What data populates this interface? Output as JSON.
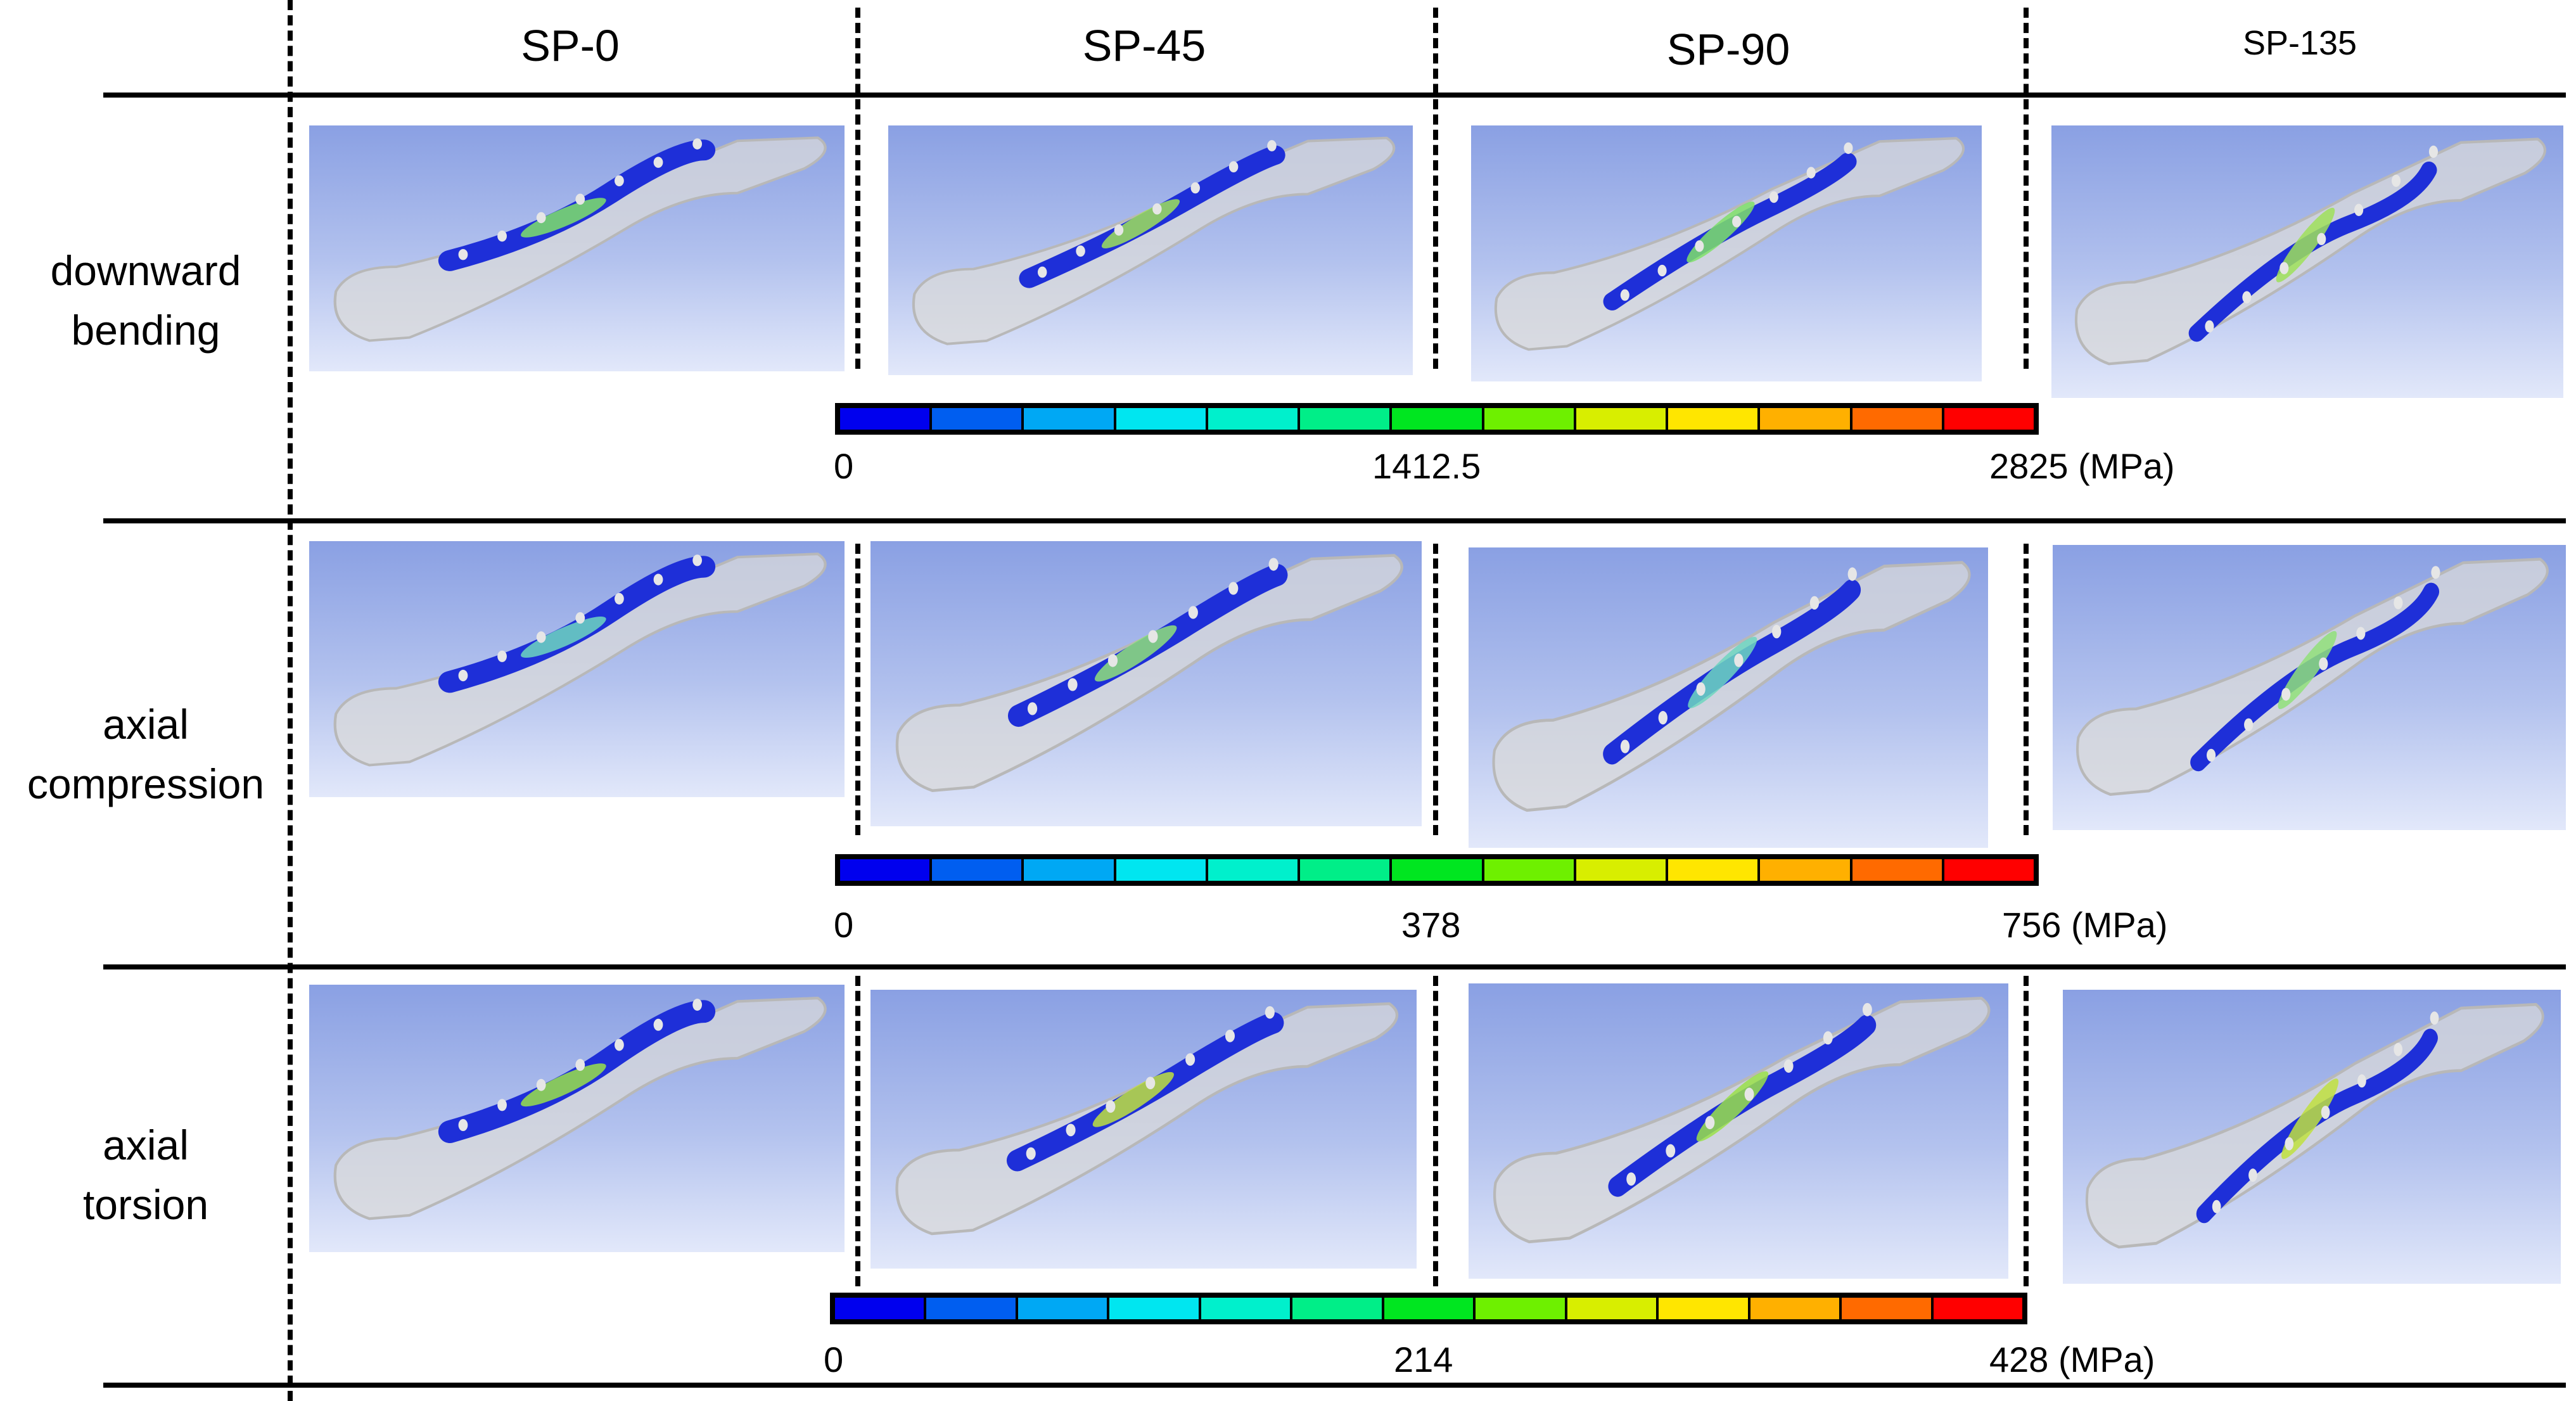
{
  "columns": [
    "SP-0",
    "SP-45",
    "SP-90",
    "SP-135"
  ],
  "rows": [
    {
      "label_line1": "downward",
      "label_line2": "bending",
      "scale": {
        "min": "0",
        "mid": "1412.5",
        "max": "2825",
        "unit": "(MPa)"
      }
    },
    {
      "label_line1": "axial",
      "label_line2": "compression",
      "scale": {
        "min": "0",
        "mid": "378",
        "max": "756",
        "unit": "(MPa)"
      }
    },
    {
      "label_line1": "axial",
      "label_line2": "torsion",
      "scale": {
        "min": "0",
        "mid": "214",
        "max": "428",
        "unit": "(MPa)"
      }
    }
  ],
  "colorbar_colors": [
    "#0000ee",
    "#005ef0",
    "#00a8f4",
    "#00e6f0",
    "#00f0cc",
    "#00ee88",
    "#00e620",
    "#6ef000",
    "#d8ee00",
    "#ffe600",
    "#ffb000",
    "#ff6a00",
    "#ff0000"
  ],
  "colors": {
    "plate": "#1e2fd8",
    "bone": "#d9d9d9",
    "panel_top": "#8aa0e3",
    "panel_bottom": "#e2e8fa"
  }
}
